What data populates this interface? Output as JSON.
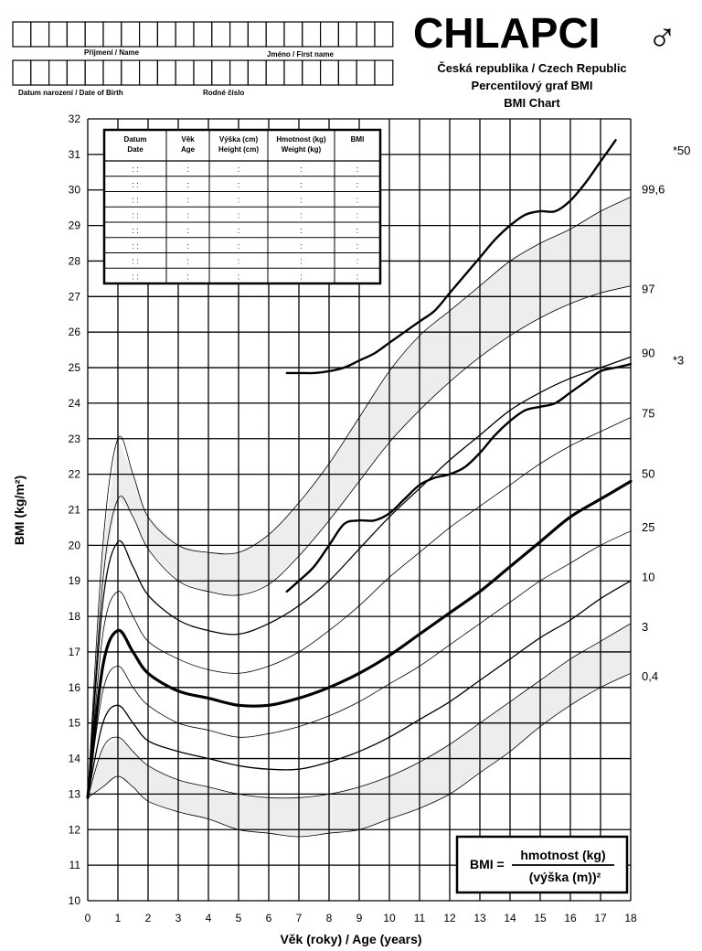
{
  "header": {
    "title": "CHLAPCI",
    "gender_symbol": "♂",
    "subtitle1": "Česká republika / Czech Republic",
    "subtitle2": "Percentilový graf BMI",
    "subtitle3": "BMI Chart",
    "surname_label": "Příjmení / Name",
    "firstname_label": "Jméno / First name",
    "dob_label": "Datum narození / Date of Birth",
    "birthnum_label": "Rodné číslo"
  },
  "record_table": {
    "headers": [
      [
        "Datum",
        "Date"
      ],
      [
        "Věk",
        "Age"
      ],
      [
        "Výška (cm)",
        "Height (cm)"
      ],
      [
        "Hmotnost (kg)",
        "Weight (kg)"
      ],
      [
        "BMI",
        ""
      ]
    ],
    "row_cells": [
      ": :",
      ":",
      ":",
      ":",
      ":"
    ],
    "row_count": 8
  },
  "formula": {
    "lhs": "BMI =",
    "numerator": "hmotnost (kg)",
    "denominator": "(výška (m))²"
  },
  "colors": {
    "ink": "#000000",
    "shade": "#d8d8d8"
  },
  "chart_data": {
    "type": "line",
    "xlabel": "Věk (roky) / Age (years)",
    "ylabel": "BMI (kg/m²)",
    "xlim": [
      0,
      18
    ],
    "ylim": [
      10,
      32
    ],
    "x_ticks": [
      "0",
      "1",
      "2",
      "3",
      "4",
      "5",
      "6",
      "7",
      "8",
      "9",
      "10",
      "11",
      "12",
      "13",
      "14",
      "15",
      "16",
      "17",
      "18"
    ],
    "y_ticks": [
      "10",
      "11",
      "12",
      "13",
      "14",
      "15",
      "16",
      "17",
      "18",
      "19",
      "20",
      "21",
      "22",
      "23",
      "24",
      "25",
      "26",
      "27",
      "28",
      "29",
      "30",
      "31",
      "32"
    ],
    "grid": true,
    "percentile_labels": [
      {
        "text": "99,6",
        "y": 30.0
      },
      {
        "text": "97",
        "y": 27.2
      },
      {
        "text": "90",
        "y": 25.4
      },
      {
        "text": "75",
        "y": 23.7
      },
      {
        "text": "50",
        "y": 22.0
      },
      {
        "text": "25",
        "y": 20.5
      },
      {
        "text": "10",
        "y": 19.1
      },
      {
        "text": "3",
        "y": 17.7
      },
      {
        "text": "0,4",
        "y": 16.3
      }
    ],
    "extra_labels": [
      {
        "text": "*50",
        "y": 31.1
      },
      {
        "text": "*3",
        "y": 25.2
      }
    ],
    "series": [
      {
        "key": "p99.6",
        "weight": "thin",
        "x": [
          0,
          0.5,
          1,
          1.5,
          2,
          3,
          4,
          5,
          6,
          7,
          8,
          9,
          10,
          11,
          12,
          13,
          14,
          15,
          16,
          17,
          18
        ],
        "values": [
          12.9,
          20.0,
          23.0,
          22.0,
          20.8,
          20.0,
          19.8,
          19.8,
          20.3,
          21.2,
          22.3,
          23.6,
          24.9,
          25.9,
          26.6,
          27.3,
          28.0,
          28.5,
          28.9,
          29.4,
          29.8
        ]
      },
      {
        "key": "p97",
        "weight": "thin",
        "x": [
          0,
          0.5,
          1,
          1.5,
          2,
          3,
          4,
          5,
          6,
          7,
          8,
          9,
          10,
          11,
          12,
          13,
          14,
          15,
          16,
          17,
          18
        ],
        "values": [
          12.9,
          19.0,
          21.3,
          20.8,
          19.9,
          19.0,
          18.7,
          18.6,
          18.9,
          19.7,
          20.7,
          21.8,
          22.9,
          23.8,
          24.6,
          25.3,
          25.9,
          26.4,
          26.8,
          27.1,
          27.3
        ]
      },
      {
        "key": "p90",
        "weight": "thin",
        "x": [
          0,
          0.5,
          1,
          1.5,
          2,
          3,
          4,
          5,
          6,
          7,
          8,
          9,
          10,
          11,
          12,
          13,
          14,
          15,
          16,
          17,
          18
        ],
        "values": [
          12.9,
          18.4,
          20.1,
          19.4,
          18.6,
          17.9,
          17.6,
          17.5,
          17.8,
          18.3,
          19.0,
          19.9,
          20.8,
          21.6,
          22.4,
          23.1,
          23.8,
          24.3,
          24.7,
          25.0,
          25.3
        ]
      },
      {
        "key": "p75",
        "weight": "thin",
        "x": [
          0,
          0.5,
          1,
          1.5,
          2,
          3,
          4,
          5,
          6,
          7,
          8,
          9,
          10,
          11,
          12,
          13,
          14,
          15,
          16,
          17,
          18
        ],
        "values": [
          12.9,
          17.5,
          18.7,
          18.0,
          17.3,
          16.8,
          16.5,
          16.4,
          16.6,
          17.0,
          17.6,
          18.3,
          19.1,
          19.8,
          20.5,
          21.1,
          21.7,
          22.3,
          22.8,
          23.2,
          23.6
        ]
      },
      {
        "key": "p50",
        "weight": "thick",
        "x": [
          0,
          0.5,
          1,
          1.5,
          2,
          3,
          4,
          5,
          6,
          7,
          8,
          9,
          10,
          11,
          12,
          13,
          14,
          15,
          16,
          17,
          18
        ],
        "values": [
          12.9,
          16.6,
          17.6,
          17.0,
          16.4,
          15.9,
          15.7,
          15.5,
          15.5,
          15.7,
          16.0,
          16.4,
          16.9,
          17.5,
          18.1,
          18.7,
          19.4,
          20.1,
          20.8,
          21.3,
          21.8
        ]
      },
      {
        "key": "p25",
        "weight": "thin",
        "x": [
          0,
          0.5,
          1,
          1.5,
          2,
          3,
          4,
          5,
          6,
          7,
          8,
          9,
          10,
          11,
          12,
          13,
          14,
          15,
          16,
          17,
          18
        ],
        "values": [
          12.9,
          15.9,
          16.6,
          16.0,
          15.5,
          15.0,
          14.8,
          14.6,
          14.7,
          14.9,
          15.2,
          15.6,
          16.1,
          16.6,
          17.2,
          17.8,
          18.4,
          19.0,
          19.5,
          20.0,
          20.4
        ]
      },
      {
        "key": "p10",
        "weight": "thin",
        "x": [
          0,
          0.5,
          1,
          1.5,
          2,
          3,
          4,
          5,
          6,
          7,
          8,
          9,
          10,
          11,
          12,
          13,
          14,
          15,
          16,
          17,
          18
        ],
        "values": [
          12.9,
          15.0,
          15.5,
          15.0,
          14.5,
          14.2,
          14.0,
          13.8,
          13.7,
          13.7,
          13.9,
          14.2,
          14.6,
          15.1,
          15.6,
          16.2,
          16.8,
          17.4,
          17.9,
          18.5,
          19.0
        ]
      },
      {
        "key": "p3",
        "weight": "thin",
        "x": [
          0,
          0.5,
          1,
          1.5,
          2,
          3,
          4,
          5,
          6,
          7,
          8,
          9,
          10,
          11,
          12,
          13,
          14,
          15,
          16,
          17,
          18
        ],
        "values": [
          12.9,
          14.3,
          14.6,
          14.2,
          13.8,
          13.4,
          13.2,
          13.0,
          12.9,
          12.9,
          13.0,
          13.2,
          13.5,
          13.9,
          14.4,
          15.0,
          15.6,
          16.2,
          16.8,
          17.3,
          17.8
        ]
      },
      {
        "key": "p0.4",
        "weight": "thin",
        "x": [
          0,
          0.5,
          1,
          1.5,
          2,
          3,
          4,
          5,
          6,
          7,
          8,
          9,
          10,
          11,
          12,
          13,
          14,
          15,
          16,
          17,
          18
        ],
        "values": [
          12.9,
          13.2,
          13.5,
          13.2,
          12.8,
          12.5,
          12.3,
          12.0,
          11.9,
          11.8,
          11.9,
          12.0,
          12.3,
          12.6,
          13.0,
          13.6,
          14.2,
          14.9,
          15.5,
          16.0,
          16.4
        ]
      },
      {
        "key": "star50",
        "weight": "medium",
        "x": [
          6.6,
          7.0,
          7.5,
          8.0,
          8.5,
          9.0,
          9.5,
          10.0,
          10.5,
          11.0,
          11.5,
          12.0,
          12.5,
          13.0,
          13.5,
          14.0,
          14.5,
          15.0,
          15.5,
          16.0,
          16.5,
          17.0,
          17.5
        ],
        "values": [
          24.85,
          24.85,
          24.85,
          24.9,
          25.0,
          25.2,
          25.4,
          25.7,
          26.0,
          26.3,
          26.6,
          27.1,
          27.6,
          28.1,
          28.6,
          29.0,
          29.3,
          29.4,
          29.4,
          29.7,
          30.2,
          30.8,
          31.4
        ]
      },
      {
        "key": "star3",
        "weight": "medium",
        "x": [
          6.6,
          7.0,
          7.5,
          8.0,
          8.5,
          9.0,
          9.5,
          10.0,
          10.5,
          11.0,
          11.5,
          12.0,
          12.5,
          13.0,
          13.5,
          14.0,
          14.5,
          15.0,
          15.5,
          16.0,
          16.5,
          17.0,
          17.5,
          18.0
        ],
        "values": [
          18.7,
          19.0,
          19.4,
          20.0,
          20.6,
          20.7,
          20.7,
          20.9,
          21.3,
          21.7,
          21.9,
          22.0,
          22.2,
          22.6,
          23.1,
          23.5,
          23.8,
          23.9,
          24.0,
          24.3,
          24.6,
          24.9,
          25.0,
          25.1
        ]
      }
    ]
  }
}
